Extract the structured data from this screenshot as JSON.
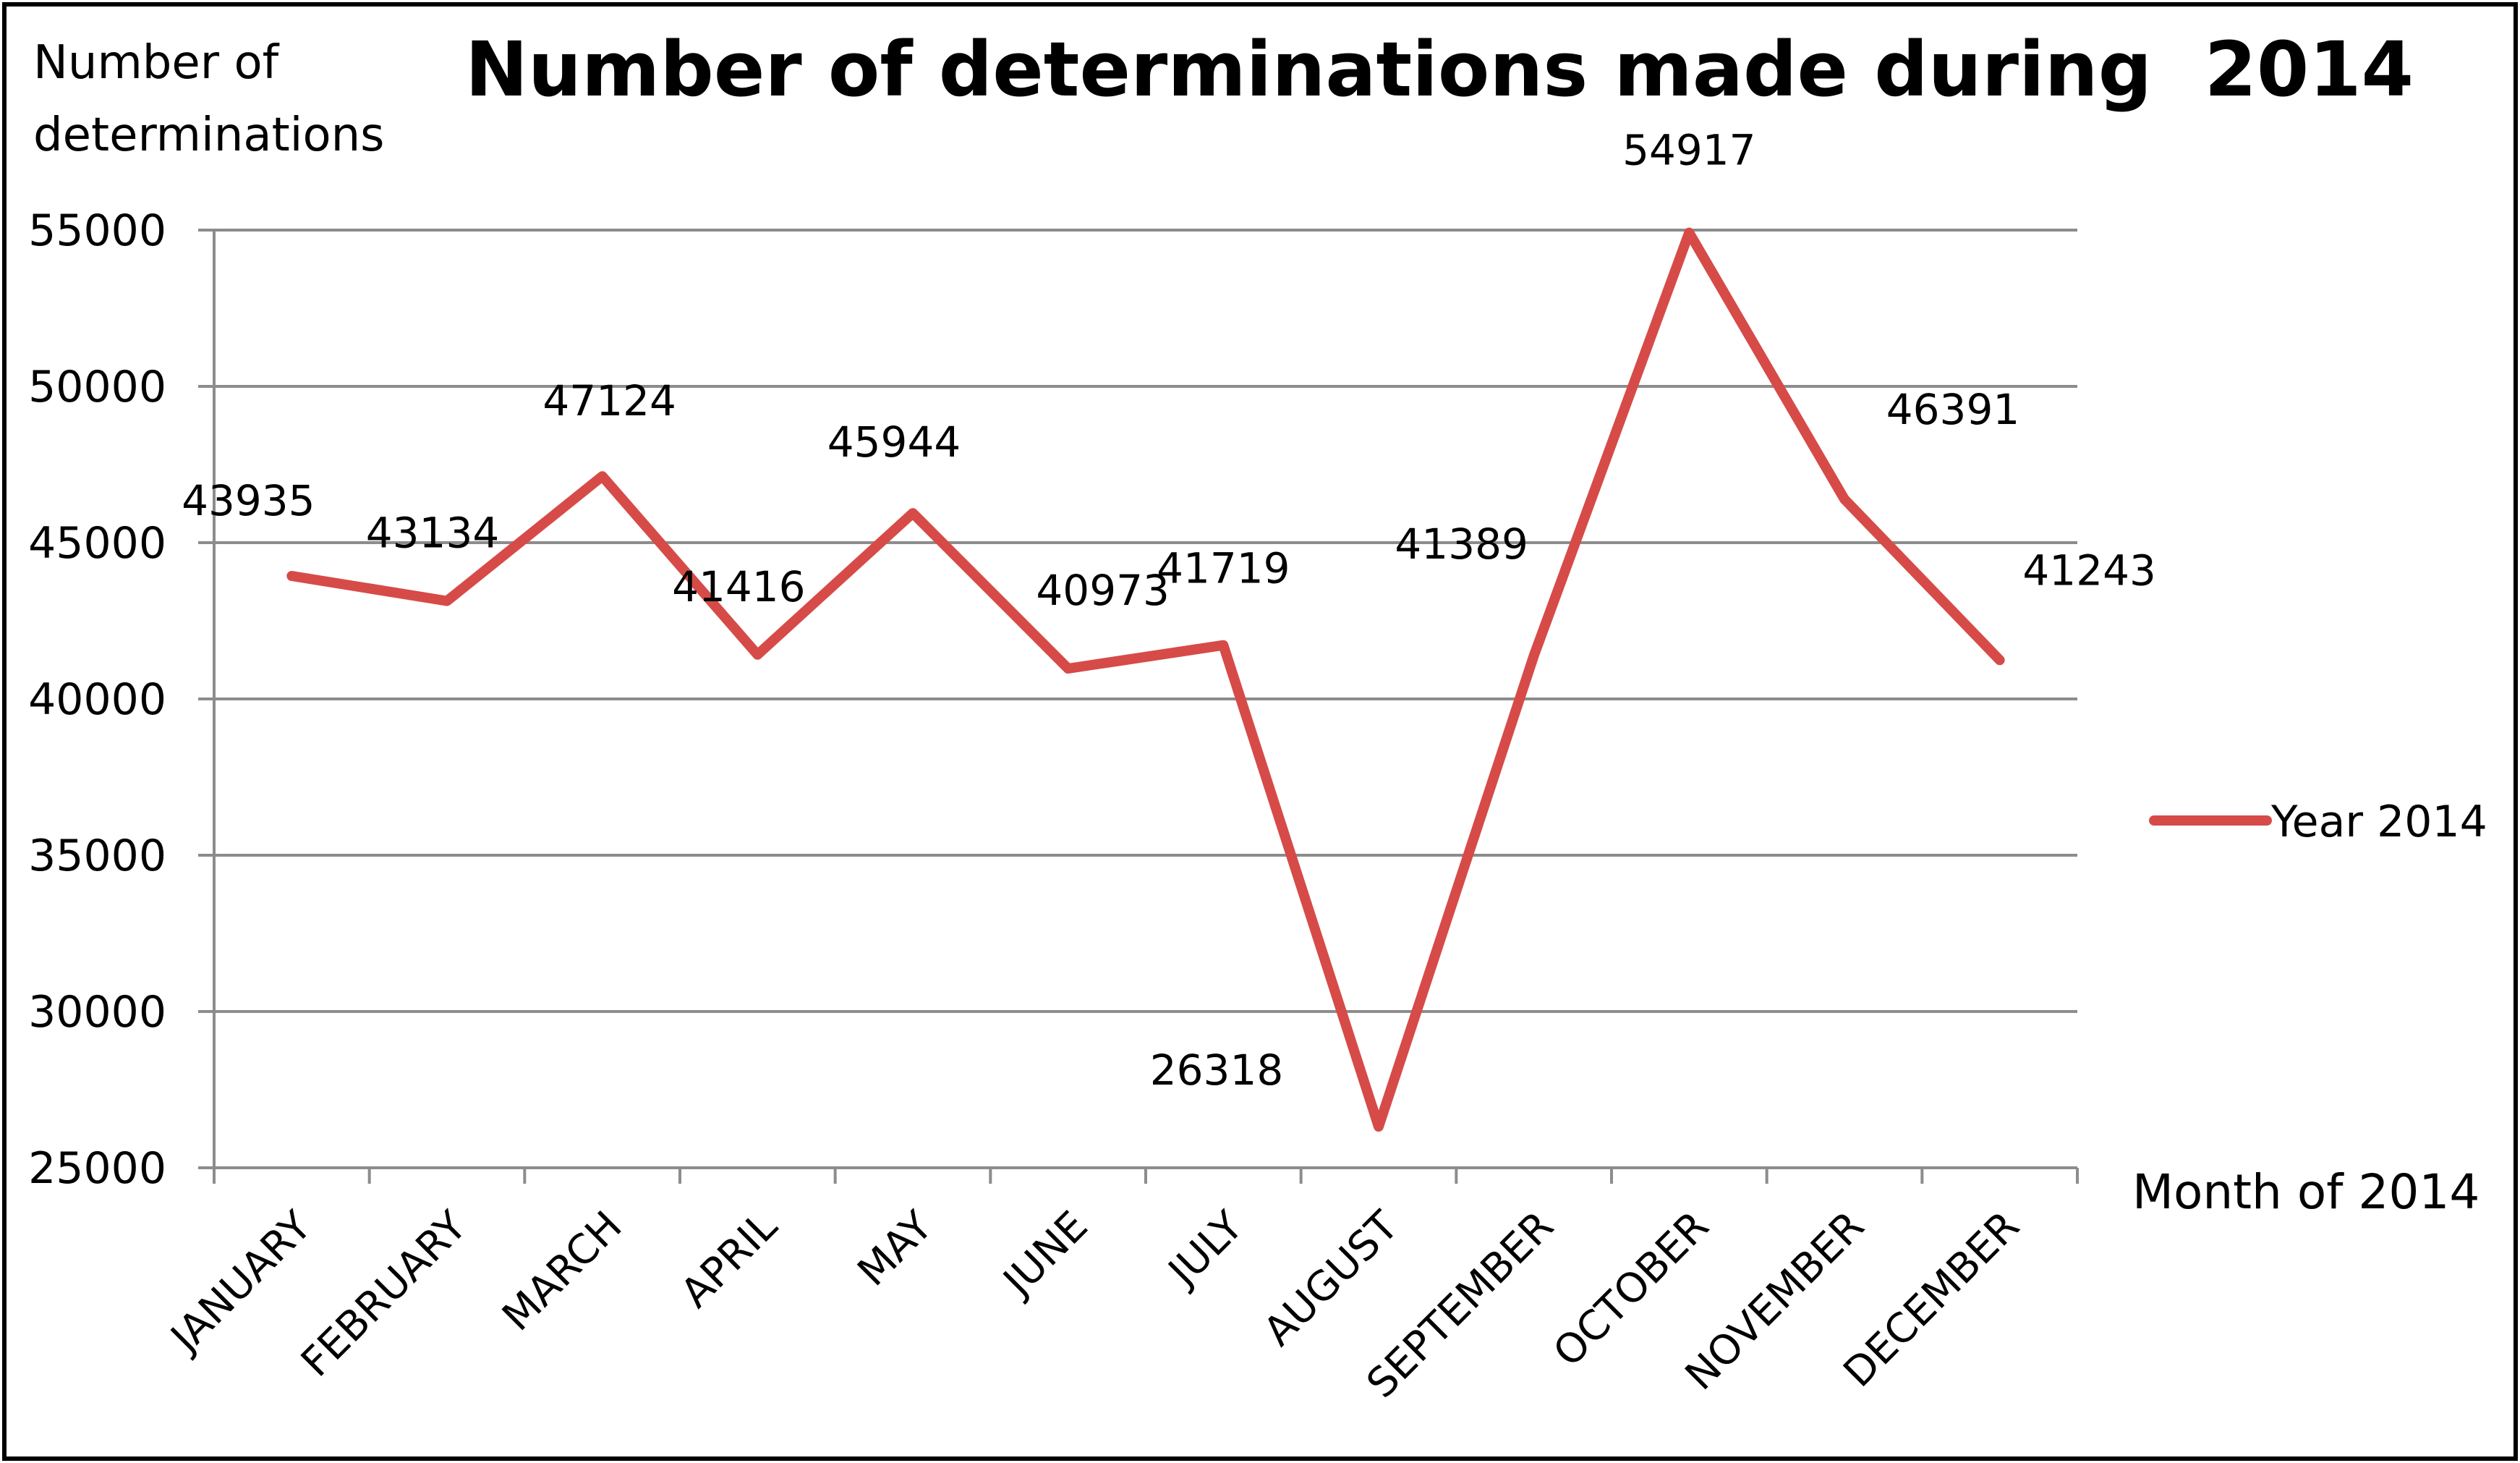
{
  "chart_data": {
    "type": "line",
    "title": "Number of determinations made during  2014",
    "ylabel": "Number of determinations",
    "xlabel": "Month of 2014",
    "categories": [
      "JANUARY",
      "FEBRUARY",
      "MARCH",
      "APRIL",
      "MAY",
      "JUNE",
      "JULY",
      "AUGUST",
      "SEPTEMBER",
      "OCTOBER",
      "NOVEMBER",
      "DECEMBER"
    ],
    "series": [
      {
        "name": "Year 2014",
        "color": "#d64b48",
        "values": [
          43935,
          43134,
          47124,
          41416,
          45944,
          40973,
          41719,
          26318,
          41389,
          54917,
          46391,
          41243
        ]
      }
    ],
    "ylim": [
      25000,
      55000
    ],
    "yticks": [
      25000,
      30000,
      35000,
      40000,
      45000,
      50000,
      55000
    ],
    "grid": true,
    "legend": "right"
  }
}
